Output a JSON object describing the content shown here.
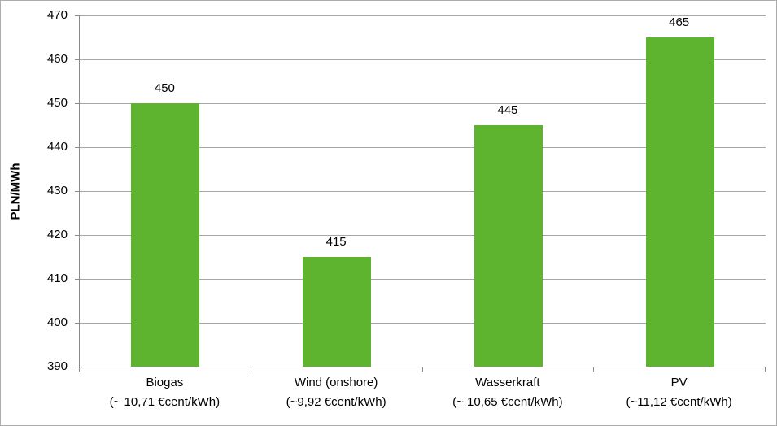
{
  "chart_data": {
    "type": "bar",
    "title": "",
    "ylabel": "PLN/MWh",
    "xlabel": "",
    "ylim": [
      390,
      470
    ],
    "yticks": [
      470,
      460,
      450,
      440,
      430,
      420,
      410,
      400,
      390
    ],
    "grid": true,
    "legend_position": "none",
    "categories": [
      "Biogas",
      "Wind (onshore)",
      "Wasserkraft",
      "PV"
    ],
    "category_sublabels": [
      "(~ 10,71 €cent/kWh)",
      "(~9,92 €cent/kWh)",
      "(~ 10,65 €cent/kWh)",
      "(~11,12 €cent/kWh)"
    ],
    "values": [
      450,
      415,
      445,
      465
    ],
    "data_labels": [
      "450",
      "415",
      "445",
      "465"
    ],
    "colors": {
      "bar_fill": "#5eb32f",
      "gridline": "#a6a6a6",
      "axis_line": "#8a8a8a",
      "text": "#000000",
      "background": "#ffffff",
      "outer_border": "#ababab"
    }
  }
}
